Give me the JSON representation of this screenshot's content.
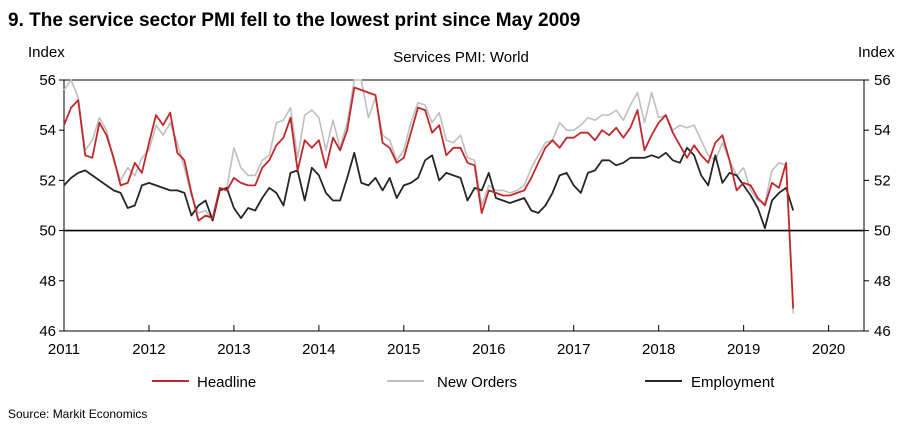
{
  "chart_data": {
    "type": "line",
    "title": "9. The service sector PMI fell to the lowest print since May 2009",
    "subtitle": "Services PMI: World",
    "ylabel_left": "Index",
    "ylabel_right": "Index",
    "xlabel": "",
    "ylim": [
      46,
      56
    ],
    "yticks": [
      46,
      48,
      50,
      52,
      54,
      56
    ],
    "xticks": [
      "2011",
      "2012",
      "2013",
      "2014",
      "2015",
      "2016",
      "2017",
      "2018",
      "2019",
      "2020"
    ],
    "x_start": "2011-01",
    "reference_line": 50,
    "legend_position": "bottom",
    "source": "Source: Markit Economics",
    "series": [
      {
        "name": "Headline",
        "color": "#c0292b",
        "values": [
          54.2,
          54.9,
          55.2,
          53.0,
          52.9,
          54.3,
          53.8,
          52.9,
          51.8,
          51.9,
          52.7,
          52.3,
          53.5,
          54.6,
          54.2,
          54.7,
          53.1,
          52.8,
          51.5,
          50.4,
          50.6,
          50.5,
          51.7,
          51.6,
          52.1,
          51.9,
          51.8,
          51.8,
          52.5,
          52.8,
          53.4,
          53.7,
          54.5,
          52.4,
          53.6,
          53.3,
          53.6,
          52.5,
          53.7,
          53.2,
          54.0,
          55.7,
          55.6,
          55.5,
          55.4,
          53.5,
          53.3,
          52.7,
          52.9,
          53.9,
          54.9,
          54.8,
          53.9,
          54.2,
          53.0,
          53.3,
          53.3,
          52.7,
          52.6,
          50.7,
          51.6,
          51.5,
          51.4,
          51.4,
          51.5,
          51.6,
          52.1,
          52.7,
          53.3,
          53.6,
          53.3,
          53.7,
          53.7,
          53.9,
          53.9,
          53.6,
          54.0,
          53.8,
          54.1,
          53.7,
          54.1,
          54.8,
          53.2,
          53.8,
          54.3,
          54.6,
          53.9,
          53.4,
          52.9,
          53.4,
          53.0,
          52.7,
          53.5,
          53.8,
          52.8,
          51.6,
          51.9,
          51.8,
          51.3,
          51.0,
          51.9,
          51.7,
          52.7,
          46.9
        ]
      },
      {
        "name": "New Orders",
        "color": "#bfbfbf",
        "values": [
          55.6,
          56.0,
          55.3,
          53.2,
          53.6,
          54.5,
          54.0,
          52.8,
          52.0,
          52.5,
          52.2,
          52.9,
          53.2,
          54.2,
          53.8,
          54.3,
          53.5,
          52.5,
          51.4,
          50.7,
          50.8,
          50.4,
          51.6,
          51.7,
          53.3,
          52.5,
          52.2,
          52.2,
          52.8,
          53.0,
          54.3,
          54.4,
          54.9,
          52.9,
          54.6,
          54.8,
          54.5,
          53.2,
          54.4,
          53.3,
          54.3,
          56.0,
          56.0,
          54.5,
          55.3,
          53.8,
          53.6,
          52.8,
          53.2,
          54.3,
          55.1,
          55.0,
          54.3,
          54.7,
          53.6,
          53.5,
          53.8,
          52.9,
          52.8,
          51.0,
          51.8,
          51.6,
          51.6,
          51.5,
          51.6,
          51.8,
          52.5,
          53.0,
          53.5,
          53.6,
          54.3,
          54.0,
          54.0,
          54.2,
          54.5,
          54.4,
          54.6,
          54.6,
          54.8,
          54.4,
          55.0,
          55.5,
          54.3,
          55.5,
          54.5,
          54.6,
          54.0,
          54.2,
          54.1,
          54.2,
          53.6,
          53.0,
          52.8,
          53.5,
          52.8,
          52.2,
          52.5,
          51.6,
          51.2,
          51.1,
          52.4,
          52.7,
          52.6,
          46.7
        ]
      },
      {
        "name": "Employment",
        "color": "#262626",
        "values": [
          51.8,
          52.1,
          52.3,
          52.4,
          52.2,
          52.0,
          51.8,
          51.6,
          51.5,
          50.9,
          51.0,
          51.8,
          51.9,
          51.8,
          51.7,
          51.6,
          51.6,
          51.5,
          50.6,
          51.0,
          51.2,
          50.4,
          51.6,
          51.7,
          50.9,
          50.5,
          50.9,
          50.8,
          51.3,
          51.7,
          51.5,
          51.0,
          52.3,
          52.4,
          51.2,
          52.5,
          52.2,
          51.5,
          51.2,
          51.2,
          52.1,
          53.1,
          51.9,
          51.8,
          52.1,
          51.6,
          52.1,
          51.3,
          51.8,
          51.9,
          52.1,
          52.8,
          53.0,
          52.0,
          52.3,
          52.2,
          52.1,
          51.2,
          51.7,
          51.6,
          52.3,
          51.3,
          51.2,
          51.1,
          51.2,
          51.3,
          50.8,
          50.7,
          51.0,
          51.5,
          52.2,
          52.3,
          51.8,
          51.5,
          52.3,
          52.4,
          52.8,
          52.8,
          52.6,
          52.7,
          52.9,
          52.9,
          52.9,
          53.0,
          52.9,
          53.1,
          52.8,
          52.7,
          53.3,
          53.0,
          52.2,
          51.8,
          53.0,
          51.9,
          52.3,
          52.2,
          51.8,
          51.4,
          50.9,
          50.1,
          51.2,
          51.5,
          51.7,
          50.8
        ]
      }
    ]
  }
}
